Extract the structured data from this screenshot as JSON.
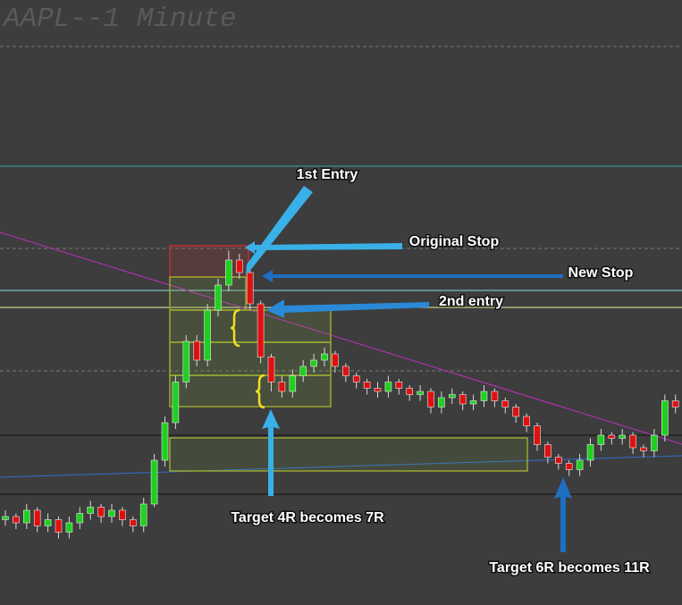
{
  "chart_data": {
    "type": "candlestick",
    "title": "AAPL--1 Minute",
    "up_color": "#1fd01f",
    "down_color": "#e01010",
    "ylim": [
      0,
      100
    ],
    "open": [
      11,
      12,
      10,
      14,
      9,
      11,
      7,
      10,
      13,
      15,
      12,
      14,
      11,
      9,
      16,
      30,
      42,
      55,
      68,
      62,
      78,
      86,
      94,
      90,
      80,
      63,
      55,
      52,
      57,
      60,
      62,
      64,
      60,
      57,
      55,
      53,
      52,
      55,
      53,
      51,
      52,
      47,
      50,
      51,
      48,
      49,
      52,
      49,
      47,
      44,
      41,
      35,
      31,
      29,
      27,
      30,
      35,
      38,
      37,
      38,
      34,
      33,
      38,
      49
    ],
    "high": [
      14,
      13,
      16,
      15,
      13,
      12,
      12,
      15,
      17,
      16,
      16,
      15,
      12,
      18,
      32,
      44,
      57,
      70,
      70,
      80,
      88,
      97,
      96,
      91,
      81,
      64,
      57,
      59,
      62,
      64,
      66,
      65,
      61,
      58,
      56,
      55,
      57,
      56,
      54,
      54,
      53,
      52,
      53,
      52,
      51,
      54,
      53,
      50,
      48,
      45,
      42,
      36,
      32,
      30,
      32,
      37,
      40,
      39,
      40,
      39,
      35,
      40,
      51,
      51
    ],
    "low": [
      9,
      8,
      8,
      7,
      7,
      5,
      5,
      8,
      11,
      10,
      10,
      9,
      7,
      7,
      15,
      28,
      40,
      53,
      60,
      60,
      76,
      84,
      88,
      78,
      61,
      52,
      50,
      50,
      55,
      58,
      60,
      58,
      55,
      53,
      51,
      50,
      50,
      51,
      49,
      49,
      45,
      45,
      48,
      46,
      46,
      47,
      47,
      45,
      42,
      39,
      33,
      29,
      27,
      25,
      25,
      28,
      33,
      35,
      35,
      32,
      31,
      31,
      36,
      45
    ],
    "close": [
      12,
      10,
      14,
      9,
      11,
      7,
      10,
      13,
      15,
      12,
      14,
      11,
      9,
      16,
      30,
      42,
      55,
      68,
      62,
      78,
      86,
      94,
      90,
      80,
      63,
      55,
      52,
      57,
      60,
      62,
      64,
      60,
      57,
      55,
      53,
      52,
      55,
      53,
      51,
      52,
      47,
      50,
      51,
      48,
      49,
      52,
      49,
      47,
      44,
      41,
      35,
      31,
      29,
      27,
      30,
      35,
      38,
      37,
      38,
      34,
      33,
      38,
      49,
      47
    ],
    "annotations": [
      "1st Entry",
      "Original Stop",
      "New Stop",
      "2nd entry",
      "Target 4R becomes 7R",
      "Target 6R becomes 11R"
    ]
  }
}
